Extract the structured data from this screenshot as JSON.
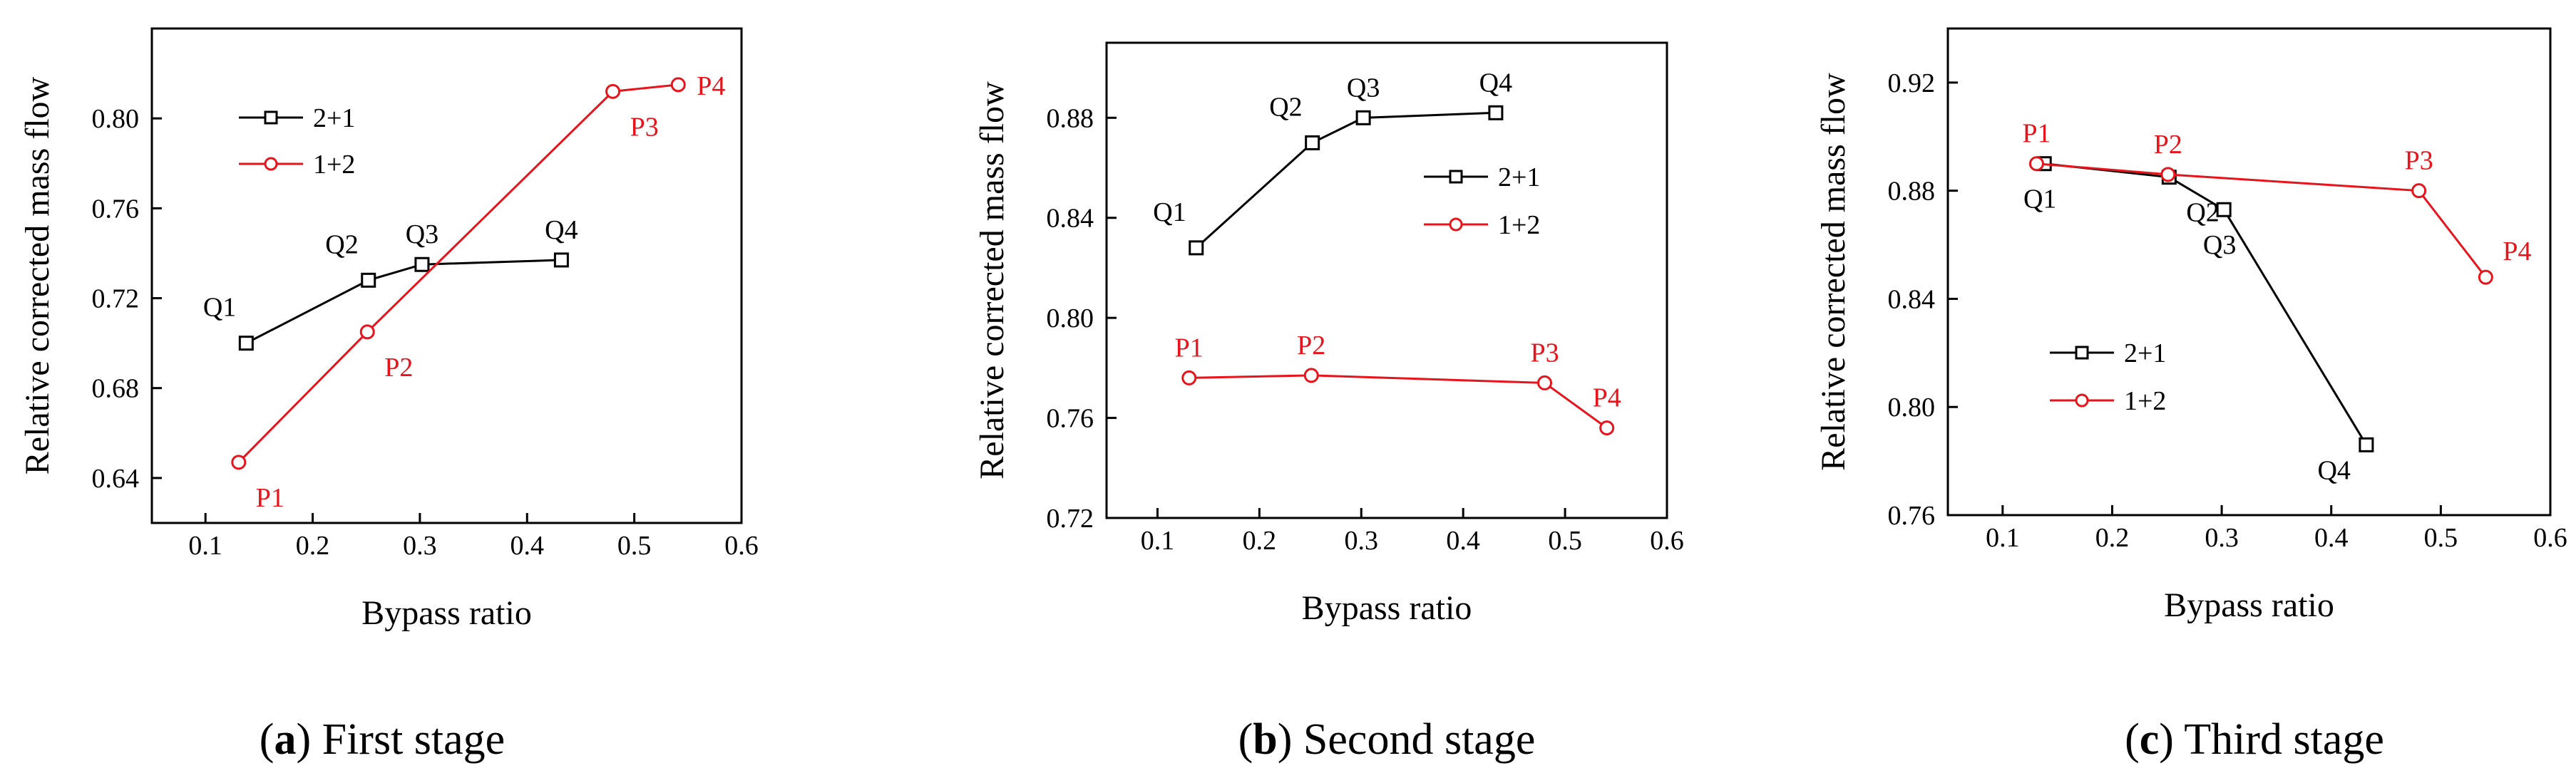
{
  "chart_data": [
    {
      "type": "line",
      "caption_letter": "a",
      "caption_text": " First stage",
      "title": "",
      "xlabel": "Bypass ratio",
      "ylabel": "Relative corrected mass flow",
      "xlim": [
        0.05,
        0.6
      ],
      "ylim": [
        0.62,
        0.84
      ],
      "xticks": [
        0.1,
        0.2,
        0.3,
        0.4,
        0.5,
        0.6
      ],
      "xtick_labels": [
        "0.1",
        "0.2",
        "0.3",
        "0.4",
        "0.5",
        "0.6"
      ],
      "yticks": [
        0.64,
        0.68,
        0.72,
        0.76,
        0.8
      ],
      "ytick_labels": [
        "0.64",
        "0.68",
        "0.72",
        "0.76",
        "0.80"
      ],
      "legend_position": "upper-left",
      "series": [
        {
          "name": "2+1",
          "color": "#000000",
          "marker": "square",
          "x": [
            0.138,
            0.252,
            0.302,
            0.432
          ],
          "y": [
            0.7,
            0.728,
            0.735,
            0.737
          ],
          "point_labels": [
            "Q1",
            "Q2",
            "Q3",
            "Q4"
          ],
          "label_placement": [
            "above-left",
            "above-left",
            "above",
            "above"
          ]
        },
        {
          "name": "1+2",
          "color": "#e8141c",
          "marker": "circle",
          "x": [
            0.131,
            0.251,
            0.48,
            0.541
          ],
          "y": [
            0.647,
            0.705,
            0.812,
            0.815
          ],
          "point_labels": [
            "P1",
            "P2",
            "P3",
            "P4"
          ],
          "label_placement": [
            "below-right",
            "below-right",
            "below-right",
            "right"
          ]
        }
      ]
    },
    {
      "type": "line",
      "caption_letter": "b",
      "caption_text": " Second stage",
      "title": "",
      "xlabel": "Bypass ratio",
      "ylabel": "Relative corrected mass flow",
      "xlim": [
        0.05,
        0.6
      ],
      "ylim": [
        0.72,
        0.91
      ],
      "xticks": [
        0.1,
        0.2,
        0.3,
        0.4,
        0.5,
        0.6
      ],
      "xtick_labels": [
        "0.1",
        "0.2",
        "0.3",
        "0.4",
        "0.5",
        "0.6"
      ],
      "yticks": [
        0.72,
        0.76,
        0.8,
        0.84,
        0.88
      ],
      "ytick_labels": [
        "0.72",
        "0.76",
        "0.80",
        "0.84",
        "0.88"
      ],
      "legend_position": "center-right",
      "series": [
        {
          "name": "2+1",
          "color": "#000000",
          "marker": "square",
          "x": [
            0.138,
            0.252,
            0.302,
            0.432
          ],
          "y": [
            0.828,
            0.87,
            0.88,
            0.882
          ],
          "point_labels": [
            "Q1",
            "Q2",
            "Q3",
            "Q4"
          ],
          "label_placement": [
            "above-left",
            "above-left",
            "above",
            "above"
          ]
        },
        {
          "name": "1+2",
          "color": "#e8141c",
          "marker": "circle",
          "x": [
            0.131,
            0.251,
            0.48,
            0.541
          ],
          "y": [
            0.776,
            0.777,
            0.774,
            0.756
          ],
          "point_labels": [
            "P1",
            "P2",
            "P3",
            "P4"
          ],
          "label_placement": [
            "above",
            "above",
            "above",
            "above"
          ]
        }
      ]
    },
    {
      "type": "line",
      "caption_letter": "c",
      "caption_text": " Third stage",
      "title": "",
      "xlabel": "Bypass ratio",
      "ylabel": "Relative corrected mass flow",
      "xlim": [
        0.05,
        0.6
      ],
      "ylim": [
        0.76,
        0.94
      ],
      "xticks": [
        0.1,
        0.2,
        0.3,
        0.4,
        0.5,
        0.6
      ],
      "xtick_labels": [
        "0.1",
        "0.2",
        "0.3",
        "0.4",
        "0.5",
        "0.6"
      ],
      "yticks": [
        0.76,
        0.8,
        0.84,
        0.88,
        0.92
      ],
      "ytick_labels": [
        "0.76",
        "0.80",
        "0.84",
        "0.88",
        "0.92"
      ],
      "legend_position": "center-left",
      "series": [
        {
          "name": "2+1",
          "color": "#000000",
          "marker": "square",
          "x": [
            0.138,
            0.252,
            0.302,
            0.432
          ],
          "y": [
            0.89,
            0.885,
            0.873,
            0.786
          ],
          "point_labels": [
            "Q1",
            "Q2",
            "Q3",
            "Q4"
          ],
          "label_placement": [
            "below",
            "below-right",
            "below",
            "below-left"
          ]
        },
        {
          "name": "1+2",
          "color": "#e8141c",
          "marker": "circle",
          "x": [
            0.131,
            0.251,
            0.48,
            0.541
          ],
          "y": [
            0.89,
            0.886,
            0.88,
            0.848
          ],
          "point_labels": [
            "P1",
            "P2",
            "P3",
            "P4"
          ],
          "label_placement": [
            "above",
            "above",
            "above",
            "above-right"
          ]
        }
      ]
    }
  ]
}
